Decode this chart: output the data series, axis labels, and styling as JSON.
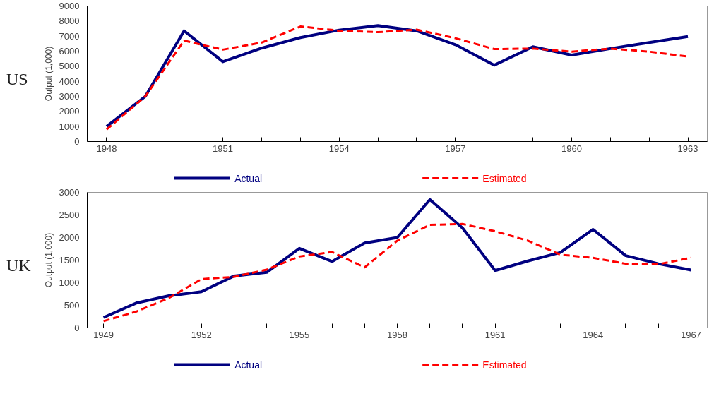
{
  "chart_data": [
    {
      "type": "line",
      "title": "US",
      "ylabel": "Output (1,000)",
      "x": [
        1948,
        1949,
        1950,
        1951,
        1952,
        1953,
        1954,
        1955,
        1956,
        1957,
        1958,
        1959,
        1960,
        1961,
        1962,
        1963
      ],
      "xlim": [
        1947.5,
        1963.5
      ],
      "xticks": [
        1948,
        {
          "value": 1949,
          "label": null
        },
        {
          "value": 1950,
          "label": null
        },
        1951,
        {
          "value": 1952,
          "label": null
        },
        {
          "value": 1953,
          "label": null
        },
        1954,
        {
          "value": 1955,
          "label": null
        },
        {
          "value": 1956,
          "label": null
        },
        1957,
        {
          "value": 1958,
          "label": null
        },
        {
          "value": 1959,
          "label": null
        },
        1960,
        {
          "value": 1961,
          "label": null
        },
        {
          "value": 1962,
          "label": null
        },
        1963
      ],
      "ylim": [
        0,
        9000
      ],
      "yticks": [
        0,
        1000,
        2000,
        3000,
        4000,
        5000,
        6000,
        7000,
        8000,
        9000
      ],
      "grid": false,
      "legend": "bottom",
      "series": [
        {
          "name": "Actual",
          "color": "#000080",
          "line_style": "solid",
          "values": [
            1000,
            3000,
            7350,
            5300,
            6200,
            6900,
            7400,
            7700,
            7350,
            6430,
            5070,
            6290,
            5740,
            6170,
            6570,
            6970
          ]
        },
        {
          "name": "Estimated",
          "color": "#ff0000",
          "line_style": "dashed",
          "values": [
            800,
            3000,
            6700,
            6100,
            6570,
            7640,
            7360,
            7260,
            7430,
            6860,
            6140,
            6170,
            5970,
            6170,
            5970,
            5640
          ]
        }
      ]
    },
    {
      "type": "line",
      "title": "UK",
      "ylabel": "Output (1,000)",
      "x": [
        1949,
        1950,
        1951,
        1952,
        1953,
        1954,
        1955,
        1956,
        1957,
        1958,
        1959,
        1960,
        1961,
        1962,
        1963,
        1964,
        1965,
        1966,
        1967
      ],
      "xlim": [
        1948.5,
        1967.5
      ],
      "xticks": [
        1949,
        {
          "value": 1950,
          "label": null
        },
        {
          "value": 1951,
          "label": null
        },
        1952,
        {
          "value": 1953,
          "label": null
        },
        {
          "value": 1954,
          "label": null
        },
        1955,
        {
          "value": 1956,
          "label": null
        },
        {
          "value": 1957,
          "label": null
        },
        1958,
        {
          "value": 1959,
          "label": null
        },
        {
          "value": 1960,
          "label": null
        },
        1961,
        {
          "value": 1962,
          "label": null
        },
        {
          "value": 1963,
          "label": null
        },
        1964,
        {
          "value": 1965,
          "label": null
        },
        {
          "value": 1966,
          "label": null
        },
        1967
      ],
      "ylim": [
        0,
        3000
      ],
      "yticks": [
        0,
        500,
        1000,
        1500,
        2000,
        2500,
        3000
      ],
      "grid": false,
      "legend": "bottom",
      "series": [
        {
          "name": "Actual",
          "color": "#000080",
          "line_style": "solid",
          "values": [
            230,
            550,
            710,
            800,
            1150,
            1230,
            1760,
            1470,
            1880,
            2000,
            2840,
            2210,
            1270,
            1480,
            1670,
            2180,
            1600,
            1420,
            1280
          ]
        },
        {
          "name": "Estimated",
          "color": "#ff0000",
          "line_style": "dashed",
          "values": [
            150,
            360,
            660,
            1080,
            1130,
            1290,
            1580,
            1680,
            1340,
            1930,
            2280,
            2300,
            2140,
            1930,
            1620,
            1550,
            1420,
            1410,
            1550
          ]
        }
      ]
    }
  ]
}
